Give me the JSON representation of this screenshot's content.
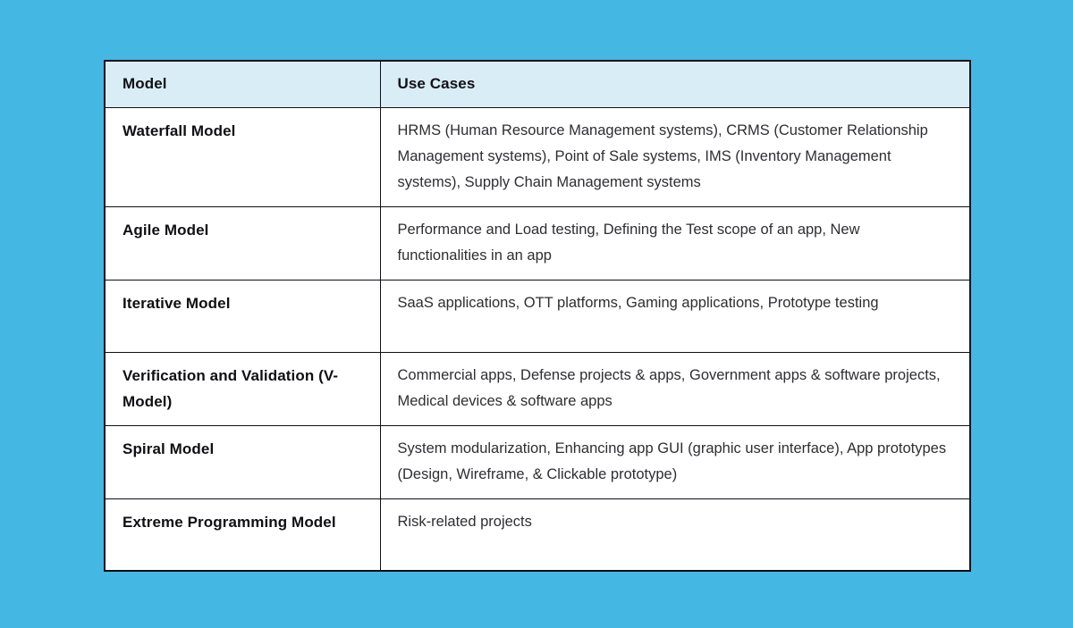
{
  "page": {
    "background_color": "#45b7e3",
    "header_bg_color": "#d9edf7",
    "border_color": "#0e1018"
  },
  "table": {
    "headers": [
      "Model",
      "Use Cases"
    ],
    "rows": [
      {
        "model": "Waterfall Model",
        "use_cases": "HRMS (Human Resource Management systems), CRMS (Customer Relationship Management systems), Point of Sale systems, IMS (Inventory Management systems), Supply Chain Management systems"
      },
      {
        "model": "Agile Model",
        "use_cases": "Performance and Load testing, Defining the Test scope of an app, New functionalities in an app"
      },
      {
        "model": "Iterative Model",
        "use_cases": "SaaS applications, OTT platforms, Gaming applications, Prototype testing"
      },
      {
        "model": "Verification and Validation (V-Model)",
        "use_cases": "Commercial apps, Defense projects & apps, Government apps & software projects, Medical devices & software apps"
      },
      {
        "model": "Spiral Model",
        "use_cases": "System modularization, Enhancing app GUI (graphic user interface), App prototypes (Design, Wireframe, & Clickable prototype)"
      },
      {
        "model": "Extreme Programming Model",
        "use_cases": "Risk-related projects"
      }
    ]
  }
}
